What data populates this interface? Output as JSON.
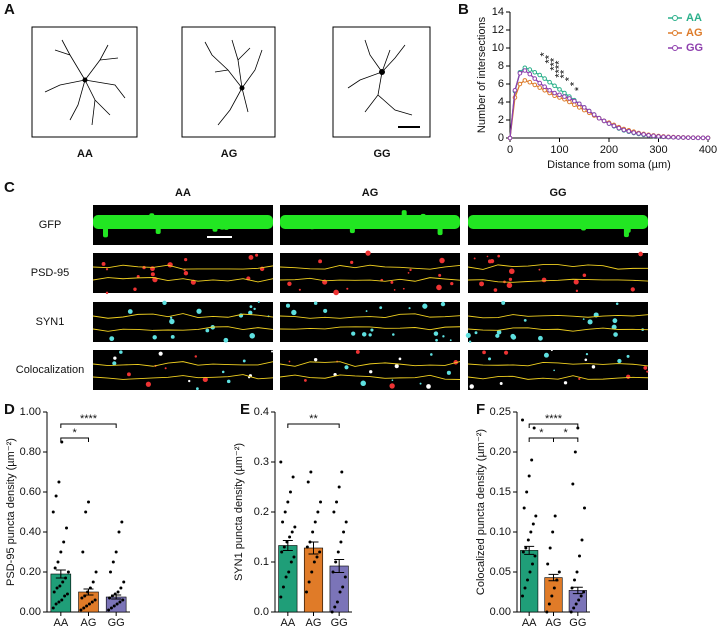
{
  "figure": {
    "panel_letters": [
      "A",
      "B",
      "C",
      "D",
      "E",
      "F"
    ],
    "a_labels": [
      "AA",
      "AG",
      "GG"
    ],
    "c_columns": [
      "AA",
      "AG",
      "GG"
    ],
    "c_rows": [
      "GFP",
      "PSD-95",
      "SYN1",
      "Colocalization"
    ]
  },
  "chart_data": [
    {
      "type": "line",
      "x_label": "Distance from soma (µm)",
      "y_label": "Number of intersections",
      "x": [
        0,
        10,
        20,
        30,
        40,
        50,
        60,
        70,
        80,
        90,
        100,
        110,
        120,
        130,
        140,
        150,
        160,
        170,
        180,
        190,
        200,
        210,
        220,
        230,
        240,
        250,
        260,
        270,
        280,
        290,
        300,
        310,
        320,
        330,
        340,
        350,
        360,
        370,
        380,
        390,
        400
      ],
      "xlim": [
        0,
        400
      ],
      "xticks": [
        0,
        100,
        200,
        300,
        400
      ],
      "ylim": [
        0,
        14
      ],
      "yticks": [
        0,
        2,
        4,
        6,
        8,
        10,
        12,
        14
      ],
      "legend": "top-right",
      "annotations": [
        "*",
        "**",
        "***",
        "****",
        "**",
        "*",
        "*",
        "*"
      ],
      "series": [
        {
          "name": "AA",
          "color": "#2bb08b",
          "values": [
            0,
            5.2,
            7.3,
            7.8,
            7.6,
            7.3,
            7.0,
            6.6,
            6.2,
            5.8,
            5.4,
            5.0,
            4.6,
            4.2,
            3.8,
            3.4,
            3.0,
            2.6,
            2.2,
            1.9,
            1.6,
            1.3,
            1.05,
            0.85,
            0.7,
            0.55,
            0.45,
            0.35,
            0.28,
            0.22,
            0.17,
            0.13,
            0.1,
            0.08,
            0.06,
            0.05,
            0.04,
            0.03,
            0.02,
            0.02,
            0.01
          ]
        },
        {
          "name": "AG",
          "color": "#dd7b2a",
          "values": [
            0,
            4.5,
            6.0,
            6.4,
            6.2,
            5.9,
            5.6,
            5.3,
            5.0,
            4.7,
            4.5,
            4.3,
            4.0,
            3.7,
            3.4,
            3.1,
            2.8,
            2.5,
            2.2,
            1.9,
            1.7,
            1.45,
            1.2,
            1.0,
            0.85,
            0.7,
            0.55,
            0.45,
            0.35,
            0.28,
            0.22,
            0.17,
            0.13,
            0.1,
            0.08,
            0.06,
            0.05,
            0.04,
            0.03,
            0.02,
            0.02
          ]
        },
        {
          "name": "GG",
          "color": "#8e3fae",
          "values": [
            0,
            5.3,
            7.2,
            7.5,
            7.1,
            6.6,
            6.1,
            5.7,
            5.3,
            5.0,
            4.8,
            4.6,
            4.4,
            4.1,
            3.8,
            3.4,
            3.0,
            2.6,
            2.2,
            1.9,
            1.6,
            1.35,
            1.1,
            0.9,
            0.75,
            0.6,
            0.5,
            0.4,
            0.3,
            0.24,
            0.18,
            0.14,
            0.11,
            0.08,
            0.06,
            0.05,
            0.04,
            0.03,
            0.02,
            0.02,
            0.01
          ]
        }
      ]
    },
    {
      "type": "bar",
      "y_label": "PSD-95 puncta density (µm⁻²)",
      "categories": [
        "AA",
        "AG",
        "GG"
      ],
      "values": [
        0.19,
        0.1,
        0.075
      ],
      "errors": [
        0.02,
        0.015,
        0.01
      ],
      "colors": [
        "#1f9e78",
        "#e07b28",
        "#7b74b8"
      ],
      "ylim": [
        0,
        1
      ],
      "yticks": [
        {
          "value": 0,
          "label": "0.00"
        },
        {
          "value": 0.2,
          "label": "0.20"
        },
        {
          "value": 0.4,
          "label": "0.40"
        },
        {
          "value": 0.6,
          "label": "0.60"
        },
        {
          "value": 0.8,
          "label": "0.80"
        },
        {
          "value": 1,
          "label": "1.00"
        }
      ],
      "points": [
        [
          0.02,
          0.04,
          0.05,
          0.06,
          0.08,
          0.09,
          0.1,
          0.12,
          0.13,
          0.15,
          0.17,
          0.2,
          0.22,
          0.25,
          0.3,
          0.35,
          0.42,
          0.5,
          0.58,
          0.65,
          0.85
        ],
        [
          0.01,
          0.02,
          0.03,
          0.04,
          0.05,
          0.06,
          0.07,
          0.08,
          0.1,
          0.12,
          0.15,
          0.2,
          0.3,
          0.5,
          0.55
        ],
        [
          0.01,
          0.02,
          0.03,
          0.04,
          0.05,
          0.06,
          0.07,
          0.08,
          0.09,
          0.1,
          0.12,
          0.15,
          0.2,
          0.25,
          0.3,
          0.4,
          0.45
        ]
      ],
      "brackets": [
        {
          "from": 0,
          "to": 2,
          "label": "****"
        },
        {
          "from": 0,
          "to": 1,
          "label": "*"
        }
      ]
    },
    {
      "type": "bar",
      "y_label": "SYN1 puncta density (µm⁻²)",
      "categories": [
        "AA",
        "AG",
        "GG"
      ],
      "values": [
        0.133,
        0.128,
        0.092
      ],
      "errors": [
        0.01,
        0.012,
        0.013
      ],
      "colors": [
        "#1f9e78",
        "#e07b28",
        "#7b74b8"
      ],
      "ylim": [
        0,
        0.4
      ],
      "yticks": [
        {
          "value": 0,
          "label": "0.0"
        },
        0.1,
        0.2,
        0.3,
        0.4
      ],
      "points": [
        [
          0.03,
          0.05,
          0.07,
          0.08,
          0.1,
          0.11,
          0.12,
          0.13,
          0.14,
          0.15,
          0.16,
          0.17,
          0.18,
          0.2,
          0.22,
          0.24,
          0.27,
          0.3
        ],
        [
          0.04,
          0.06,
          0.08,
          0.1,
          0.11,
          0.12,
          0.13,
          0.14,
          0.16,
          0.18,
          0.2,
          0.22,
          0.26,
          0.28
        ],
        [
          0,
          0.01,
          0.02,
          0.04,
          0.05,
          0.07,
          0.08,
          0.1,
          0.12,
          0.14,
          0.16,
          0.18,
          0.2,
          0.22,
          0.25,
          0.28
        ]
      ],
      "brackets": [
        {
          "from": 0,
          "to": 2,
          "label": "**"
        }
      ]
    },
    {
      "type": "bar",
      "y_label": "Colocalized puncta density (µm⁻²)",
      "categories": [
        "AA",
        "AG",
        "GG"
      ],
      "values": [
        0.077,
        0.043,
        0.027
      ],
      "errors": [
        0.005,
        0.004,
        0.004
      ],
      "colors": [
        "#1f9e78",
        "#e07b28",
        "#7b74b8"
      ],
      "ylim": [
        0,
        0.25
      ],
      "yticks": [
        {
          "value": 0,
          "label": "0.00"
        },
        0.05,
        {
          "value": 0.1,
          "label": "0.10"
        },
        0.15,
        {
          "value": 0.2,
          "label": "0.20"
        },
        0.25
      ],
      "points": [
        [
          0.02,
          0.03,
          0.04,
          0.05,
          0.06,
          0.07,
          0.075,
          0.08,
          0.09,
          0.1,
          0.11,
          0.12,
          0.13,
          0.15,
          0.17,
          0.19,
          0.23,
          0.24
        ],
        [
          0,
          0.01,
          0.02,
          0.03,
          0.04,
          0.05,
          0.06,
          0.08,
          0.1,
          0.12
        ],
        [
          0,
          0.005,
          0.01,
          0.015,
          0.02,
          0.025,
          0.03,
          0.04,
          0.05,
          0.07,
          0.09,
          0.13,
          0.16,
          0.2,
          0.23
        ]
      ],
      "brackets": [
        {
          "from": 0,
          "to": 2,
          "label": "****"
        },
        {
          "from": 0,
          "to": 1,
          "label": "*"
        },
        {
          "from": 1,
          "to": 2,
          "label": "*"
        }
      ]
    }
  ]
}
